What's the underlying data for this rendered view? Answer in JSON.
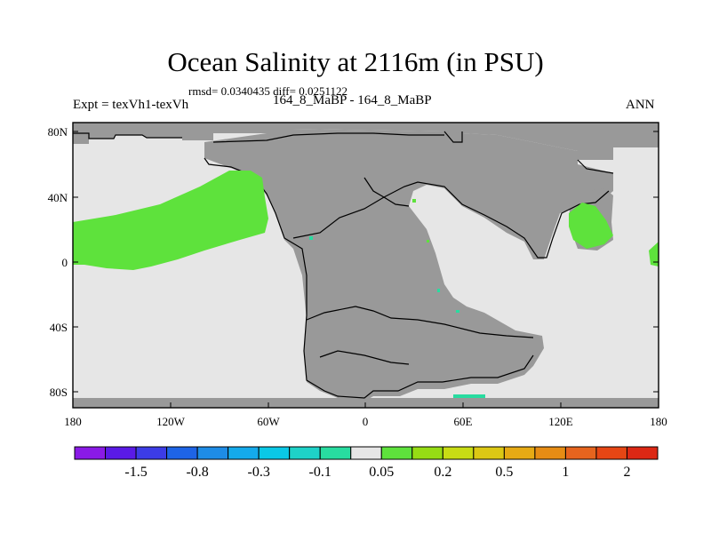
{
  "title": "Ocean Salinity at 2116m (in PSU)",
  "stats": "rmsd= 0.0340435 diff= 0.0251122",
  "experiment": "Expt = texVh1-texVh",
  "runs": "164_8_MaBP - 164_8_MaBP",
  "season": "ANN",
  "map": {
    "ocean_color": "#e6e6e6",
    "land_color": "#999999",
    "positive_color": "#5ee23c",
    "lat_ticks": [
      "80N",
      "40N",
      "0",
      "40S",
      "80S"
    ],
    "lon_ticks": [
      "180",
      "120W",
      "60W",
      "0",
      "60E",
      "120E",
      "180"
    ]
  },
  "colorbar": {
    "colors": [
      "#8a1ae6",
      "#5a1ae6",
      "#3c3ce6",
      "#1e64e6",
      "#1e8ce6",
      "#14aaeb",
      "#0ac8e6",
      "#1ed2c8",
      "#28dca0",
      "#e6e6e6",
      "#5ee23c",
      "#96dc14",
      "#c8dc14",
      "#dcc814",
      "#e6aa14",
      "#e68c14",
      "#e6641e",
      "#e64614",
      "#dc2814"
    ],
    "labels": [
      "-1.5",
      "-0.8",
      "-0.3",
      "-0.1",
      "0.05",
      "0.2",
      "0.5",
      "1",
      "2"
    ]
  }
}
